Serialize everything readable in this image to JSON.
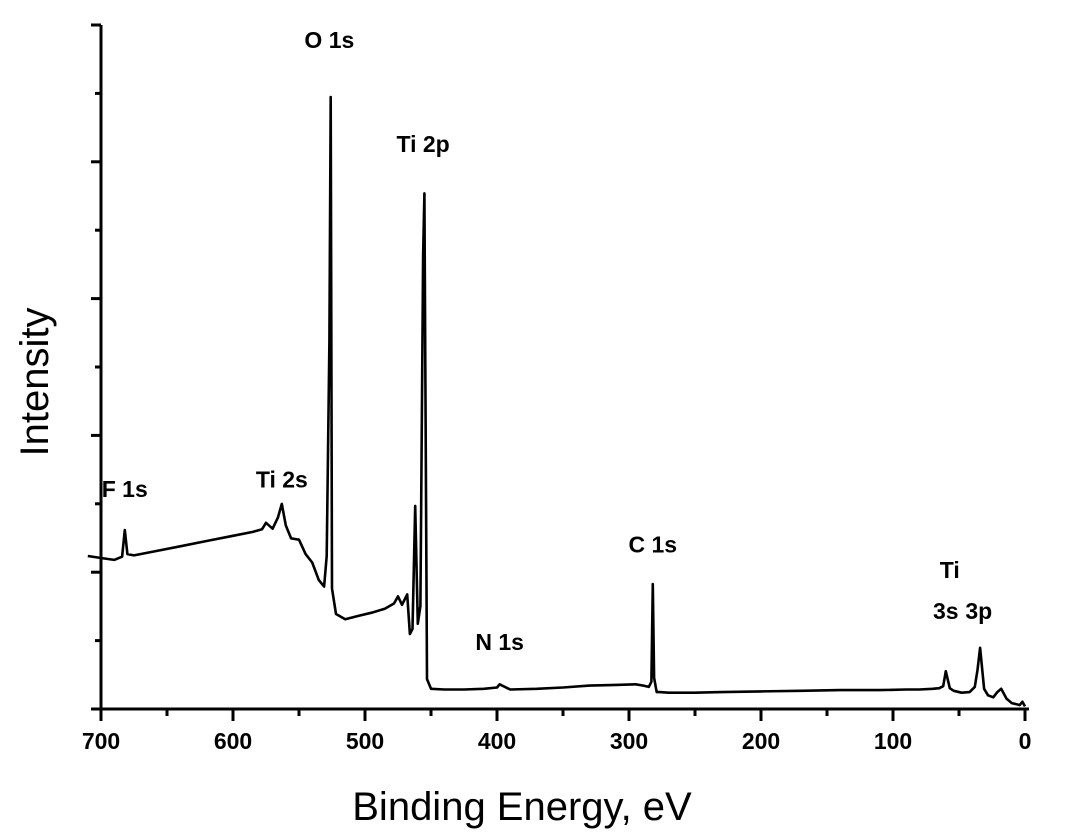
{
  "chart_data": {
    "type": "line",
    "xlabel": "Binding Energy, eV",
    "ylabel": "Intensity",
    "xlim": [
      700,
      0
    ],
    "ylim": [
      0,
      100
    ],
    "x_reversed": true,
    "x_ticks": [
      700,
      600,
      500,
      400,
      300,
      200,
      100,
      0
    ],
    "y_ticks_labeled": false,
    "series": [
      {
        "x": [
          710,
          700,
          690,
          684,
          682,
          680,
          675,
          660,
          640,
          620,
          600,
          585,
          578,
          575,
          570,
          566,
          563,
          560,
          556,
          550,
          545,
          540,
          535,
          531,
          529,
          527,
          526,
          525,
          522,
          515,
          505,
          495,
          485,
          478,
          475,
          472,
          468,
          466,
          464,
          462,
          460,
          458,
          456,
          455,
          453,
          450,
          440,
          425,
          410,
          400,
          398,
          390,
          370,
          350,
          330,
          310,
          295,
          289,
          285,
          283,
          282,
          281,
          279,
          277,
          270,
          250,
          230,
          200,
          170,
          140,
          110,
          90,
          80,
          70,
          65,
          62,
          60,
          57,
          54,
          48,
          42,
          38,
          36,
          34,
          31,
          28,
          24,
          21,
          18,
          14,
          10,
          6,
          4,
          2,
          0
        ],
        "y": [
          23.5,
          23.2,
          22.9,
          23.4,
          27.5,
          23.8,
          23.6,
          24.2,
          25.0,
          25.8,
          26.6,
          27.2,
          27.6,
          28.6,
          27.7,
          29.4,
          31.5,
          28.2,
          26.2,
          26.0,
          23.8,
          22.5,
          19.8,
          18.8,
          23.5,
          56.5,
          94.0,
          18.5,
          14.6,
          13.8,
          14.3,
          14.8,
          15.4,
          16.2,
          17.3,
          16.0,
          17.6,
          11.5,
          12.3,
          31.2,
          13.1,
          15.8,
          69.5,
          79.2,
          4.6,
          3.1,
          3.0,
          3.0,
          3.1,
          3.3,
          3.8,
          3.0,
          3.1,
          3.3,
          3.6,
          3.7,
          3.8,
          3.6,
          3.4,
          4.2,
          19.2,
          4.8,
          2.6,
          2.6,
          2.5,
          2.5,
          2.6,
          2.7,
          2.8,
          2.9,
          2.9,
          3.0,
          3.0,
          3.1,
          3.2,
          3.5,
          5.8,
          3.2,
          2.8,
          2.5,
          2.6,
          3.4,
          6.0,
          9.4,
          3.1,
          2.1,
          1.8,
          2.6,
          3.1,
          1.6,
          0.9,
          0.7,
          0.6,
          1.1,
          0.4
        ]
      }
    ],
    "annotations": [
      {
        "text": "O 1s",
        "x": 527,
        "y": 100
      },
      {
        "text": "Ti 2p",
        "x": 456,
        "y": 84
      },
      {
        "text": "F 1s",
        "x": 682,
        "y": 31
      },
      {
        "text": "Ti 2s",
        "x": 563,
        "y": 32.5
      },
      {
        "text": "C 1s",
        "x": 282,
        "y": 22.5
      },
      {
        "text": "N 1s",
        "x": 398,
        "y": 7.5
      },
      {
        "text": "Ti",
        "x": 57,
        "y": 18.6
      },
      {
        "text": "3s",
        "x": 60,
        "y": 12.3
      },
      {
        "text": "3p",
        "x": 35,
        "y": 12.3
      }
    ]
  }
}
